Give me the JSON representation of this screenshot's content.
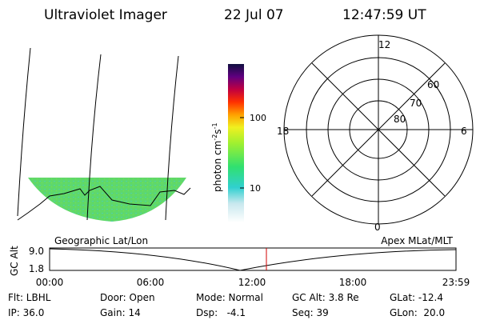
{
  "header": {
    "title": "Ultraviolet Imager",
    "date": "22 Jul 07",
    "time": "12:47:59 UT"
  },
  "colorbar": {
    "unit_parts": [
      "photon cm",
      "-2",
      "s",
      "-1"
    ],
    "tick_labels": [
      "100",
      "10"
    ]
  },
  "polar": {
    "labels": [
      "12",
      "60",
      "70",
      "80",
      "18",
      "6",
      "0"
    ]
  },
  "altitude_plot": {
    "left_title": "Geographic Lat/Lon",
    "right_title": "Apex MLat/MLT",
    "y_label": "GC Alt",
    "y_tick_labels": [
      "9.0",
      "1.8"
    ],
    "x_tick_labels": [
      "00:00",
      "06:00",
      "12:00",
      "18:00",
      "23:59"
    ]
  },
  "footer": {
    "rows": [
      [
        "Flt: LBHL",
        "Door: Open",
        "Mode: Normal",
        "GC Alt: 3.8 Re",
        "GLat: -12.4"
      ],
      [
        "IP: 36.0",
        "Gain: 14",
        "Dsp:   -4.1",
        "Seq: 39",
        "GLon:  20.0"
      ]
    ]
  }
}
